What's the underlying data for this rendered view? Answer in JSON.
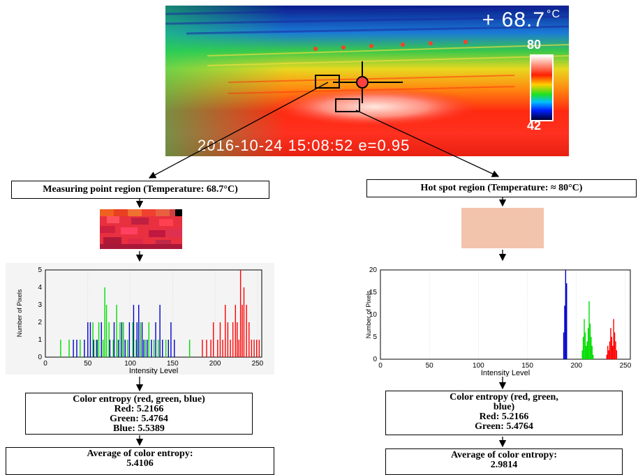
{
  "thermal": {
    "temperature": "+ 68.7",
    "unit": "°C",
    "scale_max": "80",
    "scale_min": "42",
    "timestamp": "2016-10-24 15:08:52 e=0.95"
  },
  "left": {
    "region_label": "Measuring point region (Temperature: 68.7°C)",
    "entropy_title": "Color entropy (red, green, blue)",
    "red": "Red: 5.2166",
    "green": "Green: 5.4764",
    "blue": "Blue: 5.5389",
    "average_title": "Average of color entropy:",
    "average_value": "5.4106"
  },
  "right": {
    "region_label": "Hot spot region (Temperature: ≈ 80°C)",
    "entropy_title_1": "Color entropy (red, green,",
    "entropy_title_2": "blue)",
    "red": "Red: 5.2166",
    "green": "Green: 5.4764",
    "average_title": "Average of color entropy:",
    "average_value": "2.9814"
  },
  "colors": {
    "red": "#ff0000",
    "green": "#00dd00",
    "blue": "#0000cc"
  },
  "chart_data": [
    {
      "type": "bar",
      "xlabel": "Intensity Level",
      "ylabel": "Number of Pixels",
      "xlim": [
        0,
        255
      ],
      "ylim": [
        0,
        5
      ],
      "xticks": [
        0,
        50,
        100,
        150,
        200,
        250
      ],
      "yticks": [
        0,
        1,
        2,
        3,
        4,
        5
      ],
      "series": [
        {
          "color": "green",
          "x": [
            18,
            28,
            41,
            56,
            60,
            63,
            68,
            70,
            72,
            75,
            80,
            84,
            88,
            92,
            97,
            103,
            107,
            112,
            118,
            122,
            128,
            133,
            142,
            170
          ],
          "values": [
            1,
            1,
            1,
            2,
            1,
            2,
            1,
            4,
            3,
            2,
            1,
            3,
            2,
            2,
            1,
            2,
            1,
            2,
            1,
            2,
            1,
            1,
            1,
            1
          ]
        },
        {
          "color": "blue",
          "x": [
            33,
            37,
            46,
            50,
            53,
            57,
            61,
            66,
            76,
            81,
            86,
            90,
            94,
            99,
            104,
            108,
            110,
            114,
            116,
            120,
            125,
            130,
            135,
            138,
            145,
            148,
            152
          ],
          "values": [
            1,
            1,
            1,
            2,
            2,
            1,
            1,
            2,
            1,
            2,
            1,
            2,
            1,
            2,
            3,
            2,
            3,
            2,
            1,
            1,
            1,
            2,
            3,
            1,
            1,
            2,
            1
          ]
        },
        {
          "color": "red",
          "x": [
            185,
            190,
            195,
            198,
            203,
            206,
            209,
            212,
            215,
            218,
            221,
            224,
            226,
            228,
            230,
            232,
            234,
            237,
            240,
            243,
            246,
            249,
            252
          ],
          "values": [
            1,
            1,
            1,
            2,
            1,
            2,
            1,
            3,
            2,
            1,
            2,
            3,
            2,
            1,
            5,
            3,
            4,
            3,
            2,
            1,
            1,
            1,
            1
          ]
        }
      ]
    },
    {
      "type": "bar",
      "xlabel": "Intensity Level",
      "ylabel": "Number of Pixels",
      "xlim": [
        0,
        255
      ],
      "ylim": [
        0,
        20
      ],
      "xticks": [
        0,
        50,
        100,
        150,
        200,
        250
      ],
      "yticks": [
        0,
        5,
        10,
        15,
        20
      ],
      "series": [
        {
          "color": "blue",
          "x": [
            187,
            188,
            189,
            190
          ],
          "values": [
            6,
            12,
            20,
            17
          ]
        },
        {
          "color": "green",
          "x": [
            206,
            207,
            208,
            209,
            210,
            211,
            212,
            213,
            214,
            215,
            216,
            217
          ],
          "values": [
            2,
            5,
            9,
            6,
            3,
            4,
            7,
            13,
            8,
            5,
            3,
            1
          ]
        },
        {
          "color": "red",
          "x": [
            231,
            232,
            233,
            234,
            235,
            236,
            237,
            238,
            239,
            240,
            241
          ],
          "values": [
            1,
            3,
            2,
            4,
            7,
            5,
            3,
            9,
            6,
            4,
            2
          ]
        }
      ]
    }
  ]
}
